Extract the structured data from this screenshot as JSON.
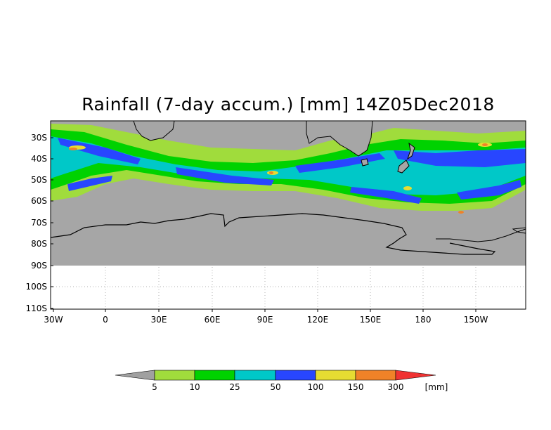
{
  "title": "Rainfall (7-day accum.) [mm] 14Z05Dec2018",
  "map": {
    "lat_labels": [
      "30S",
      "40S",
      "50S",
      "60S",
      "70S",
      "80S",
      "90S",
      "100S",
      "110S"
    ],
    "lon_labels": [
      "30W",
      "0",
      "30E",
      "60E",
      "90E",
      "120E",
      "150E",
      "180",
      "150W"
    ],
    "ocean_color": "#a6a6a6",
    "no_data_color": "#ffffff",
    "coastline_color": "#000000"
  },
  "legend": {
    "thresholds": [
      "5",
      "10",
      "25",
      "50",
      "100",
      "150",
      "300"
    ],
    "unit": "[mm]",
    "colors": [
      "#a0a0a0",
      "#a0dc3c",
      "#00d200",
      "#00c8c8",
      "#2846ff",
      "#e6dc32",
      "#f08228",
      "#f03232"
    ]
  }
}
